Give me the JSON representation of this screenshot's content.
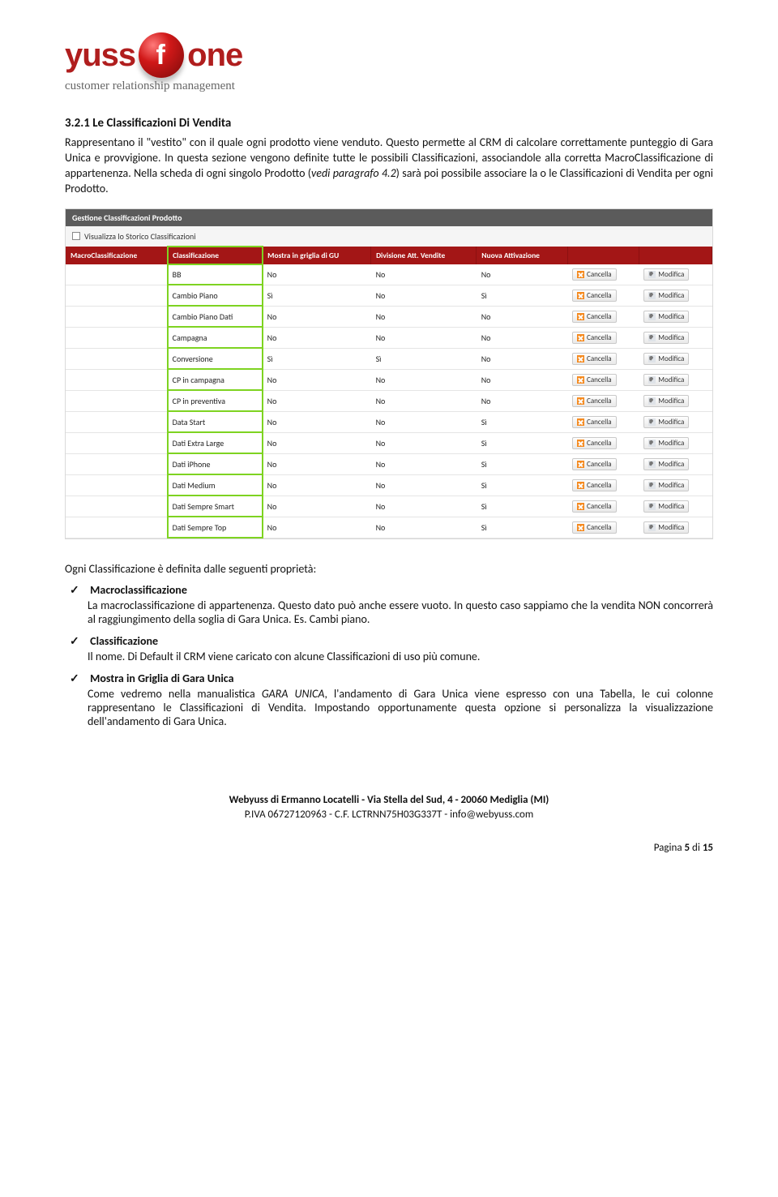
{
  "logo": {
    "word_left": "yuss",
    "sphere_letter": "f",
    "word_right": "one",
    "tagline": "customer relationship management"
  },
  "heading": "3.2.1   Le Classificazioni Di Vendita",
  "para1": "Rappresentano il \"vestito\" con il quale ogni prodotto viene venduto. Questo permette al CRM di calcolare correttamente punteggio di Gara Unica e provvigione. In questa sezione vengono definite tutte le possibili Classificazioni, associandole alla corretta MacroClassificazione di appartenenza.   Nella scheda di ogni singolo Prodotto (",
  "para1_em": "vedi paragrafo 4.2",
  "para1_tail": ") sarà poi possibile associare la o le Classificazioni di Vendita per ogni Prodotto.",
  "panel": {
    "title": "Gestione Classificazioni Prodotto",
    "checkbox_label": "Visualizza lo Storico Classificazioni",
    "columns": [
      "MacroClassificazione",
      "Classificazione",
      "Mostra in griglia di GU",
      "Divisione Att. Vendite",
      "Nuova Attivazione",
      "",
      ""
    ],
    "cancel_label": "Cancella",
    "edit_label": "Modifica",
    "rows": [
      [
        "",
        "BB",
        "No",
        "No",
        "No"
      ],
      [
        "",
        "Cambio Piano",
        "Sì",
        "No",
        "Sì"
      ],
      [
        "",
        "Cambio Piano Dati",
        "No",
        "No",
        "No"
      ],
      [
        "",
        "Campagna",
        "No",
        "No",
        "No"
      ],
      [
        "",
        "Conversione",
        "Sì",
        "Sì",
        "No"
      ],
      [
        "",
        "CP in campagna",
        "No",
        "No",
        "No"
      ],
      [
        "",
        "CP in preventiva",
        "No",
        "No",
        "No"
      ],
      [
        "",
        "Data Start",
        "No",
        "No",
        "Sì"
      ],
      [
        "",
        "Dati Extra Large",
        "No",
        "No",
        "Sì"
      ],
      [
        "",
        "Dati iPhone",
        "No",
        "No",
        "Sì"
      ],
      [
        "",
        "Dati Medium",
        "No",
        "No",
        "Sì"
      ],
      [
        "",
        "Dati Sempre Smart",
        "No",
        "No",
        "Sì"
      ],
      [
        "",
        "Dati Sempre Top",
        "No",
        "No",
        "Sì"
      ]
    ]
  },
  "props_intro": "Ogni Classificazione è definita dalle seguenti proprietà:",
  "props": [
    {
      "label": "Macroclassificazione",
      "desc": "La macroclassificazione di appartenenza. Questo dato può anche essere vuoto. In questo caso sappiamo che la vendita NON concorrerà al raggiungimento della soglia di Gara Unica. Es. Cambi piano."
    },
    {
      "label": "Classificazione",
      "desc": "Il nome. Di Default il CRM viene caricato con alcune Classificazioni di uso più comune."
    },
    {
      "label": "Mostra in Griglia di Gara Unica",
      "desc_pre": "Come vedremo nella manualistica ",
      "desc_em": "GARA UNICA",
      "desc_post": ", l'andamento di Gara Unica viene espresso con una Tabella, le cui colonne rappresentano le Classificazioni di Vendita. Impostando opportunamente questa opzione si personalizza la visualizzazione dell'andamento di Gara Unica."
    }
  ],
  "footer": {
    "line1": "Webyuss di Ermanno Locatelli - Via Stella del Sud, 4 - 20060 Mediglia (MI)",
    "line2": "P.IVA 06727120963 - C.F. LCTRNN75H03G337T - info@webyuss.com"
  },
  "page": {
    "label_pre": "Pagina ",
    "num": "5",
    "label_mid": " di ",
    "total": "15"
  }
}
